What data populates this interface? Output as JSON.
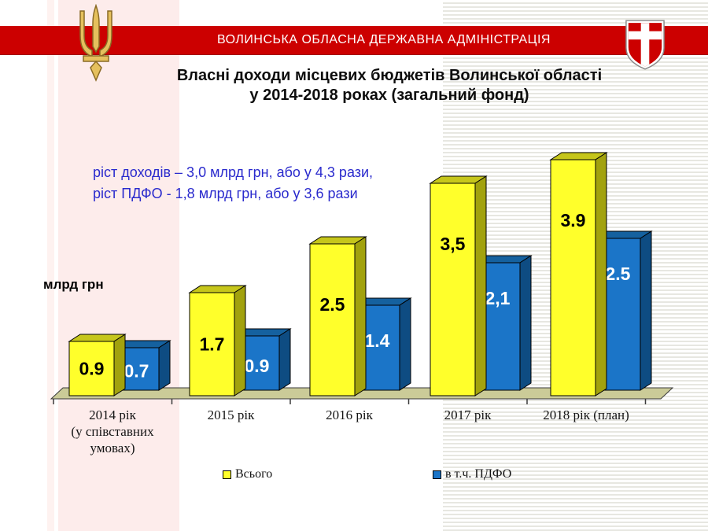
{
  "banner": {
    "text": "ВОЛИНСЬКА ОБЛАСНА ДЕРЖАВНА АДМІНІСТРАЦІЯ",
    "bg_color": "#cc0000",
    "text_color": "#ffffff"
  },
  "emblems": {
    "left": "ukraine-golden-trident",
    "right": "volyn-red-shield-with-white-cross"
  },
  "title": {
    "line1": "Власні доходи місцевих бюджетів Волинської області",
    "line2": "у 2014-2018 роках (загальний фонд)"
  },
  "annotation": {
    "line1": "ріст доходів – 3,0 млрд грн, або у 4,3 рази,",
    "line2": "ріст ПДФО - 1,8 млрд грн, або у 3,6 рази",
    "color": "#2a2acd"
  },
  "chart_data": {
    "type": "bar",
    "style": "3d-columns",
    "title": "Власні доходи місцевих бюджетів Волинської області у 2014-2018 роках (загальний фонд)",
    "ylabel": "млрд грн",
    "xlabel": "",
    "grid": false,
    "legend_position": "bottom",
    "ylim": [
      0,
      4.2
    ],
    "categories": [
      "2014 рік\n(у співставних\nумовах)",
      "2015 рік",
      "2016 рік",
      "2017 рік",
      "2018 рік (план)"
    ],
    "series": [
      {
        "name": "Всього",
        "values": [
          0.9,
          1.7,
          2.5,
          3.5,
          3.9
        ],
        "labels": [
          "0.9",
          "1.7",
          "2.5",
          "3,5",
          "3.9"
        ],
        "color": "#ffff2b",
        "color_top": "#c6c61b",
        "color_side": "#a2a20e",
        "label_color": "#000000"
      },
      {
        "name": "в т.ч. ПДФО",
        "values": [
          0.7,
          0.9,
          1.4,
          2.1,
          2.5
        ],
        "labels": [
          "0.7",
          "0.9",
          "1.4",
          "2,1",
          "2.5"
        ],
        "color": "#1b75c8",
        "color_top": "#15619f",
        "color_side": "#0e4c82",
        "label_color": "#ffffff"
      }
    ],
    "floor_color": "#cbcb98"
  }
}
